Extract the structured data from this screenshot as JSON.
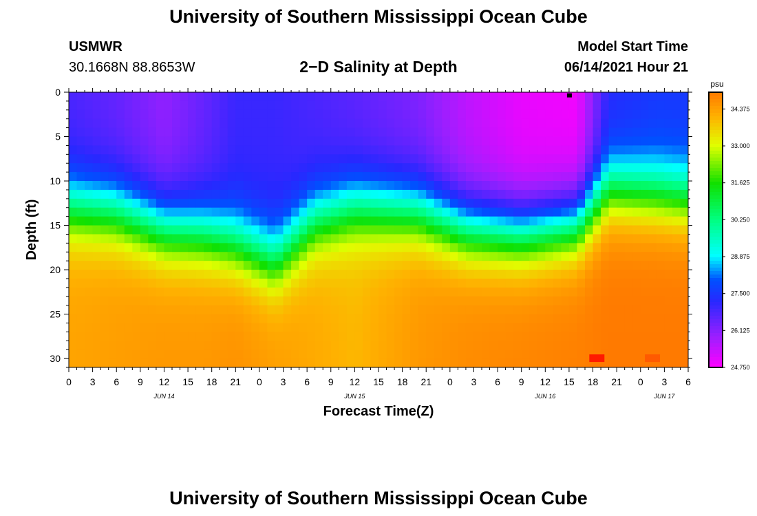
{
  "page": {
    "title_top": "University of Southern Mississippi Ocean Cube",
    "title_bottom": "University of Southern Mississippi Ocean Cube",
    "station": "USMWR",
    "coords": "30.1668N  88.8653W",
    "subtitle": "2−D Salinity at Depth",
    "model_label": "Model Start Time",
    "model_time": "06/14/2021 Hour 21"
  },
  "chart_data": {
    "type": "heatmap",
    "title": "2-D Salinity at Depth",
    "xlabel": "Forecast Time(Z)",
    "ylabel": "Depth (ft)",
    "x_tick_labels": [
      "0",
      "3",
      "6",
      "9",
      "12",
      "15",
      "18",
      "21",
      "0",
      "3",
      "6",
      "9",
      "12",
      "15",
      "18",
      "21",
      "0",
      "3",
      "6",
      "9",
      "12",
      "15",
      "18",
      "21",
      "0",
      "3",
      "6"
    ],
    "x_range_hours": [
      0,
      78
    ],
    "date_labels": [
      {
        "label": "JUN 14",
        "hour": 12
      },
      {
        "label": "JUN 15",
        "hour": 36
      },
      {
        "label": "JUN 16",
        "hour": 60
      },
      {
        "label": "JUN 17",
        "hour": 75
      }
    ],
    "y_tick_labels": [
      "0",
      "5",
      "10",
      "15",
      "20",
      "25",
      "30"
    ],
    "y_range_ft": [
      0,
      31
    ],
    "colorbar": {
      "unit": "psu",
      "range": [
        24.75,
        35.0
      ],
      "tick_labels": [
        "34.375",
        "33.000",
        "31.625",
        "30.250",
        "28.875",
        "27.500",
        "26.125",
        "24.750"
      ],
      "stops": [
        {
          "value": 24.75,
          "color": "#ff00ff"
        },
        {
          "value": 25.9,
          "color": "#9b1fff"
        },
        {
          "value": 27.2,
          "color": "#2828ff"
        },
        {
          "value": 28.0,
          "color": "#0050ff"
        },
        {
          "value": 28.9,
          "color": "#00ffff"
        },
        {
          "value": 30.25,
          "color": "#00ff80"
        },
        {
          "value": 31.6,
          "color": "#10e000"
        },
        {
          "value": 33.0,
          "color": "#e0ff00"
        },
        {
          "value": 34.1,
          "color": "#ffb000"
        },
        {
          "value": 35.0,
          "color": "#ff7a00"
        }
      ]
    },
    "profile": {
      "hours": [
        0,
        6,
        12,
        17,
        21,
        26,
        31,
        36,
        44,
        50,
        57,
        64,
        68,
        74,
        78
      ],
      "mid_depth_ft": [
        13,
        13.5,
        15.5,
        16,
        17,
        19,
        14.5,
        13,
        13.5,
        15.5,
        16,
        15,
        11,
        11.5,
        12
      ],
      "top_salinity_psu": [
        26.8,
        26.5,
        26.0,
        26.5,
        27.0,
        27.0,
        26.8,
        26.6,
        26.2,
        25.5,
        25.0,
        24.9,
        27.2,
        27.5,
        27.5
      ],
      "bottom_salinity_psu": [
        34.3,
        34.4,
        34.5,
        34.5,
        34.6,
        34.4,
        34.2,
        34.0,
        34.5,
        34.7,
        34.8,
        34.9,
        35.0,
        35.0,
        35.0
      ]
    },
    "annotations": [
      {
        "type": "marker",
        "hour": 63,
        "depth_ft": 0.2
      },
      {
        "type": "hotspot",
        "hour": 66.5,
        "depth_ft": 30,
        "color": "#ff1a00"
      },
      {
        "type": "hotspot",
        "hour": 73.5,
        "depth_ft": 30,
        "color": "#ff5a00"
      }
    ]
  }
}
